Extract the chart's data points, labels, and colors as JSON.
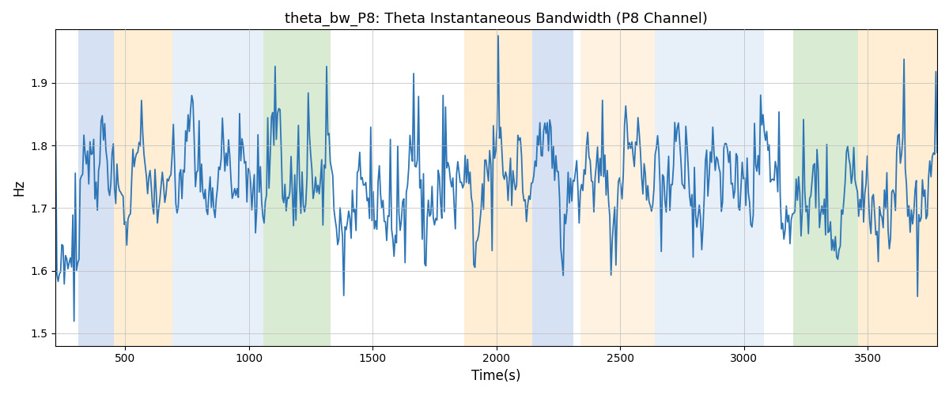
{
  "title": "theta_bw_P8: Theta Instantaneous Bandwidth (P8 Channel)",
  "xlabel": "Time(s)",
  "ylabel": "Hz",
  "xlim": [
    220,
    3780
  ],
  "ylim": [
    1.48,
    1.985
  ],
  "yticks": [
    1.5,
    1.6,
    1.7,
    1.8,
    1.9
  ],
  "xticks": [
    500,
    1000,
    1500,
    2000,
    2500,
    3000,
    3500
  ],
  "line_color": "#2e75b6",
  "line_width": 1.3,
  "figsize": [
    12.0,
    5.0
  ],
  "dpi": 100,
  "background_color": "#ffffff",
  "grid_color": "#bbbbbb",
  "colored_bands": [
    {
      "xmin": 310,
      "xmax": 455,
      "color": "#aec6e8",
      "alpha": 0.5
    },
    {
      "xmin": 455,
      "xmax": 690,
      "color": "#ffdcaa",
      "alpha": 0.5
    },
    {
      "xmin": 690,
      "xmax": 1060,
      "color": "#c5d8ee",
      "alpha": 0.4
    },
    {
      "xmin": 1060,
      "xmax": 1330,
      "color": "#b5d9a8",
      "alpha": 0.5
    },
    {
      "xmin": 1870,
      "xmax": 2145,
      "color": "#ffdcaa",
      "alpha": 0.5
    },
    {
      "xmin": 2145,
      "xmax": 2310,
      "color": "#aec6e8",
      "alpha": 0.5
    },
    {
      "xmin": 2340,
      "xmax": 2640,
      "color": "#ffdcaa",
      "alpha": 0.35
    },
    {
      "xmin": 2640,
      "xmax": 2870,
      "color": "#c5d8ee",
      "alpha": 0.4
    },
    {
      "xmin": 2870,
      "xmax": 3080,
      "color": "#c5d8ee",
      "alpha": 0.4
    },
    {
      "xmin": 3200,
      "xmax": 3460,
      "color": "#b5d9a8",
      "alpha": 0.5
    },
    {
      "xmin": 3460,
      "xmax": 3780,
      "color": "#ffdcaa",
      "alpha": 0.5
    }
  ],
  "seed": 7,
  "t_start": 220,
  "t_end": 3780,
  "n_points": 720
}
